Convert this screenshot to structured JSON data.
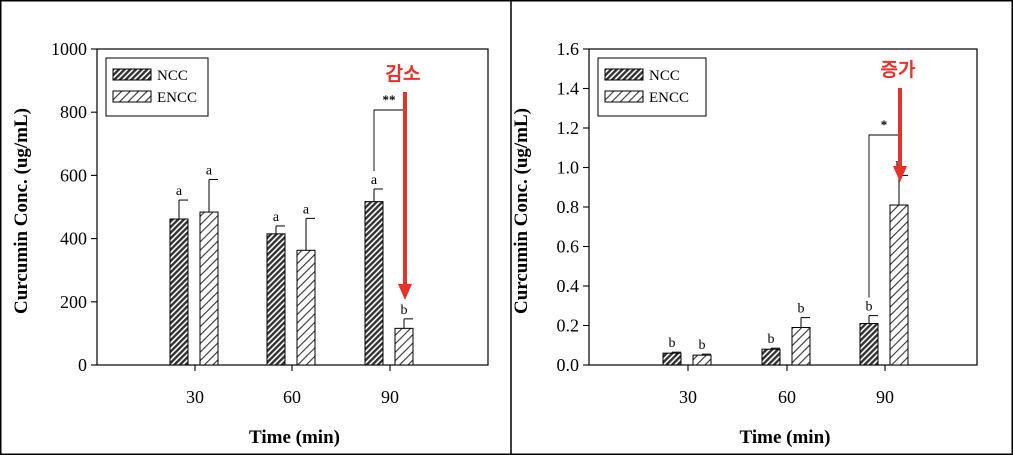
{
  "chart_data": [
    {
      "type": "bar",
      "categories": [
        "30",
        "60",
        "90"
      ],
      "xlabel": "Time (min)",
      "ylabel": "Curcumin Conc. (ug/mL)",
      "ylim": [
        0,
        1000
      ],
      "yticks": [
        "0",
        "200",
        "400",
        "600",
        "800",
        "1000"
      ],
      "legend_position": "top-left",
      "grid": false,
      "series": [
        {
          "name": "NCC",
          "values": [
            462,
            415,
            517
          ],
          "errors": [
            60,
            25,
            40
          ],
          "labels": [
            "a",
            "a",
            "a"
          ],
          "pattern": "dense-diagonal",
          "color": "#555555"
        },
        {
          "name": "ENCC",
          "values": [
            484,
            363,
            116
          ],
          "errors": [
            103,
            101,
            30
          ],
          "labels": [
            "a",
            "a",
            "b"
          ],
          "pattern": "sparse-diagonal",
          "color": "#ffffff"
        }
      ],
      "significance": {
        "category": "90",
        "text": "**"
      },
      "annotation": {
        "text": "감소",
        "color": "#e8312a",
        "arrow": "down",
        "category": "90"
      }
    },
    {
      "type": "bar",
      "categories": [
        "30",
        "60",
        "90"
      ],
      "xlabel": "Time (min)",
      "ylabel": "Curcumin Conc. (ug/mL)",
      "ylim": [
        0,
        1.6
      ],
      "yticks": [
        "0.0",
        "0.2",
        "0.4",
        "0.6",
        "0.8",
        "1.0",
        "1.2",
        "1.4",
        "1.6"
      ],
      "legend_position": "top-left",
      "grid": false,
      "series": [
        {
          "name": "NCC",
          "values": [
            0.06,
            0.08,
            0.21
          ],
          "errors": [
            0.005,
            0.005,
            0.04
          ],
          "labels": [
            "b",
            "b",
            "b"
          ],
          "pattern": "dense-diagonal",
          "color": "#555555"
        },
        {
          "name": "ENCC",
          "values": [
            0.05,
            0.19,
            0.81
          ],
          "errors": [
            0.005,
            0.05,
            0.15
          ],
          "labels": [
            "b",
            "b",
            "b"
          ],
          "pattern": "sparse-diagonal",
          "color": "#ffffff"
        }
      ],
      "significance": {
        "category": "90",
        "text": "*"
      },
      "annotation": {
        "text": "증가",
        "color": "#e8312a",
        "arrow": "down",
        "category": "90"
      }
    }
  ]
}
